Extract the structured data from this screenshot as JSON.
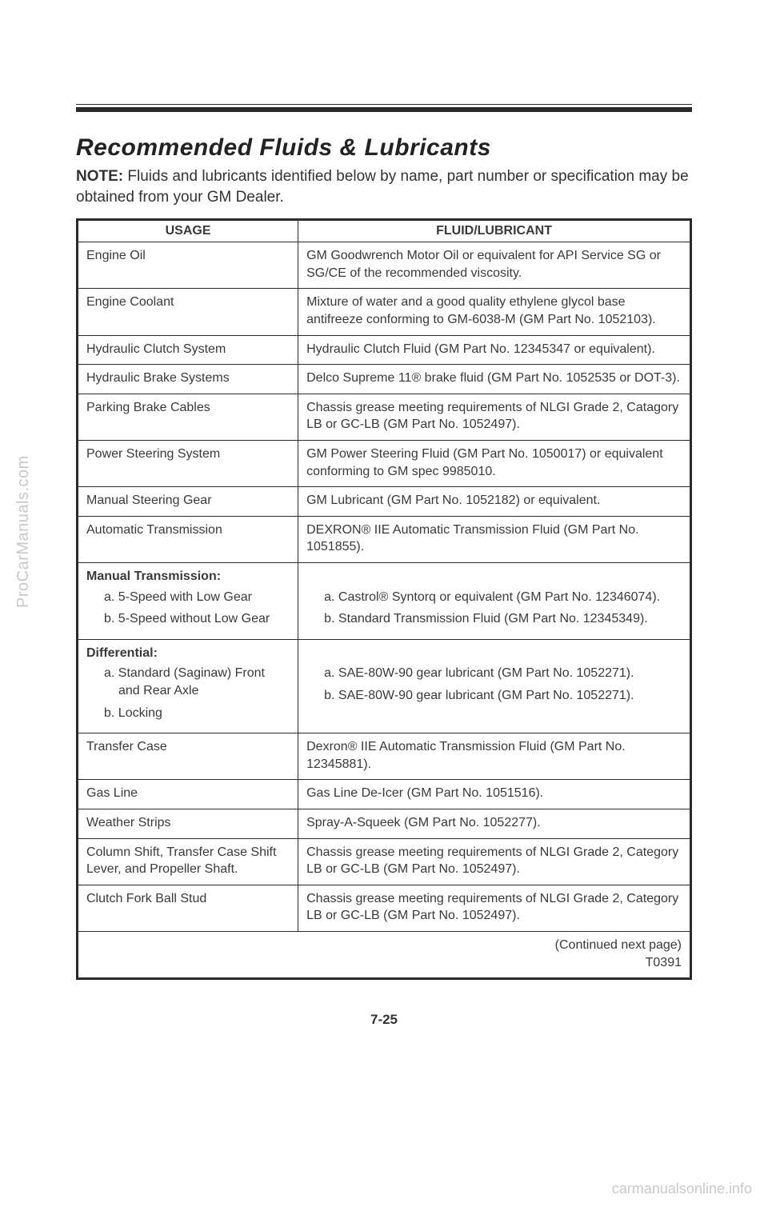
{
  "heading": "Recommended Fluids & Lubricants",
  "note_label": "NOTE:",
  "note_text": " Fluids and lubricants identified below by name, part number or specification may be obtained from your GM Dealer.",
  "table": {
    "headers": {
      "usage": "USAGE",
      "fluid": "FLUID/LUBRICANT"
    },
    "rows": [
      {
        "usage": "Engine Oil",
        "fluid": "GM Goodwrench Motor Oil or equivalent for API Service SG or SG/CE of the recommended viscosity."
      },
      {
        "usage": "Engine Coolant",
        "fluid": "Mixture of water and a good quality ethylene glycol base antifreeze conforming to GM-6038-M (GM Part No. 1052103)."
      },
      {
        "usage": "Hydraulic Clutch System",
        "fluid": "Hydraulic Clutch Fluid (GM Part No. 12345347 or equivalent)."
      },
      {
        "usage": "Hydraulic Brake Systems",
        "fluid": "Delco Supreme 11® brake fluid (GM Part No. 1052535 or DOT-3)."
      },
      {
        "usage": "Parking Brake Cables",
        "fluid": "Chassis grease meeting requirements of NLGI Grade 2, Catagory LB or GC-LB (GM Part No. 1052497)."
      },
      {
        "usage": "Power Steering System",
        "fluid": "GM Power Steering Fluid (GM Part No. 1050017) or equivalent conforming to GM spec 9985010."
      },
      {
        "usage": "Manual Steering Gear",
        "fluid": "GM Lubricant (GM Part No. 1052182) or equivalent."
      },
      {
        "usage": "Automatic Transmission",
        "fluid": "DEXRON® IIE Automatic Transmission Fluid (GM Part No. 1051855)."
      }
    ],
    "manual_trans": {
      "title": "Manual Transmission:",
      "usage": [
        "a. 5-Speed with Low Gear",
        "b. 5-Speed without Low Gear"
      ],
      "fluid": [
        "a. Castrol® Syntorq or equivalent (GM Part No. 12346074).",
        "b. Standard Transmission Fluid (GM Part No. 12345349)."
      ]
    },
    "differential": {
      "title": "Differential:",
      "usage": [
        "a. Standard (Saginaw) Front and Rear Axle",
        "b. Locking"
      ],
      "fluid": [
        "a. SAE-80W-90 gear lubricant (GM Part No. 1052271).",
        "b. SAE-80W-90 gear lubricant (GM Part No. 1052271)."
      ]
    },
    "rows2": [
      {
        "usage": "Transfer Case",
        "fluid": "Dexron® IIE Automatic Transmission Fluid (GM Part No. 12345881)."
      },
      {
        "usage": "Gas Line",
        "fluid": "Gas Line De-Icer (GM Part No. 1051516)."
      },
      {
        "usage": "Weather Strips",
        "fluid": "Spray-A-Squeek (GM Part No. 1052277)."
      },
      {
        "usage": "Column Shift, Transfer Case Shift Lever, and Propeller Shaft.",
        "fluid": "Chassis grease meeting requirements of NLGI Grade 2, Category LB or GC-LB (GM Part No. 1052497)."
      },
      {
        "usage": "Clutch Fork Ball Stud",
        "fluid": "Chassis grease meeting requirements of NLGI Grade 2, Category LB or GC-LB (GM Part No. 1052497)."
      }
    ],
    "continued": "(Continued next page)",
    "code": "T0391"
  },
  "page_number": "7-25",
  "watermarks": {
    "side": "ProCarManuals.com",
    "bottom": "carmanualsonline.info"
  }
}
